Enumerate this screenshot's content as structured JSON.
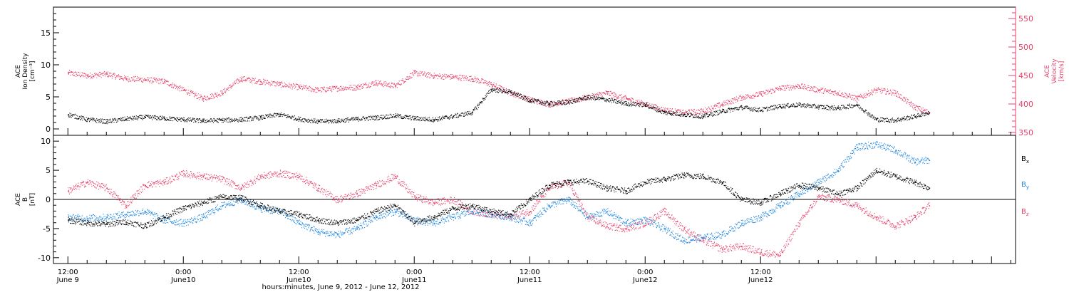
{
  "chart_data": [
    {
      "type": "scatter",
      "panel": "top",
      "ylabel": "ACE Ion Density [cm⁻³]",
      "ylabel_lines": [
        "ACE",
        "Ion Density",
        "[cm⁻³]"
      ],
      "ylim": [
        -1,
        19
      ],
      "yticks": [
        0,
        5,
        10,
        15
      ],
      "y2label": "ACE Velocity [km/s]",
      "y2label_lines": [
        "ACE",
        "Velocity",
        "[km/s]"
      ],
      "y2lim": [
        345,
        570
      ],
      "y2ticks": [
        350,
        400,
        450,
        500,
        550
      ],
      "y2_color": "#e8406a",
      "series": [
        {
          "name": "Ion Density",
          "axis": "left",
          "color": "#000000",
          "x_hours": [
            0,
            2,
            4,
            6,
            8,
            10,
            12,
            14,
            16,
            18,
            20,
            22,
            24,
            26,
            28,
            30,
            32,
            34,
            36,
            38,
            40,
            42,
            44,
            46,
            48,
            50,
            52,
            54,
            56,
            58,
            60,
            62,
            64,
            66,
            68,
            70,
            72,
            74,
            76,
            78,
            80,
            82,
            84,
            86,
            88,
            89.5
          ],
          "values": [
            2.3,
            1.5,
            1.2,
            1.6,
            1.9,
            1.7,
            1.5,
            1.3,
            1.4,
            1.5,
            1.8,
            2.3,
            1.6,
            1.2,
            1.3,
            1.6,
            1.8,
            2.1,
            1.7,
            1.5,
            2.0,
            2.6,
            6.2,
            5.8,
            4.5,
            4.0,
            4.2,
            5.0,
            4.6,
            4.0,
            3.8,
            2.6,
            2.3,
            2.0,
            2.8,
            3.4,
            3.0,
            3.6,
            3.8,
            3.5,
            3.3,
            3.8,
            1.5,
            1.4,
            2.0,
            2.6
          ]
        },
        {
          "name": "Velocity",
          "axis": "right",
          "color": "#e8406a",
          "x_hours": [
            0,
            2,
            4,
            6,
            8,
            10,
            12,
            14,
            16,
            18,
            20,
            22,
            24,
            26,
            28,
            30,
            32,
            34,
            36,
            38,
            40,
            42,
            44,
            46,
            48,
            50,
            52,
            54,
            56,
            58,
            60,
            62,
            64,
            66,
            68,
            70,
            72,
            74,
            76,
            78,
            80,
            82,
            84,
            86,
            88,
            89.5
          ],
          "values": [
            455,
            450,
            453,
            445,
            443,
            440,
            425,
            410,
            420,
            445,
            440,
            435,
            430,
            425,
            428,
            430,
            438,
            432,
            455,
            450,
            448,
            445,
            435,
            420,
            408,
            400,
            405,
            412,
            420,
            410,
            400,
            390,
            385,
            388,
            400,
            412,
            418,
            428,
            432,
            425,
            420,
            410,
            425,
            420,
            395,
            385
          ]
        }
      ]
    },
    {
      "type": "scatter",
      "panel": "bottom",
      "ylabel": "ACE B [nT]",
      "ylabel_lines": [
        "ACE",
        "B",
        "[nT]"
      ],
      "ylim": [
        -11,
        11
      ],
      "yticks": [
        -10,
        -5,
        0,
        5,
        10
      ],
      "zero_line": true,
      "series": [
        {
          "name": "Bx",
          "legend_main": "B",
          "legend_sub": "x",
          "color": "#000000",
          "x_hours": [
            0,
            2,
            4,
            6,
            8,
            10,
            12,
            14,
            16,
            18,
            20,
            22,
            24,
            26,
            28,
            30,
            32,
            34,
            36,
            38,
            40,
            42,
            44,
            46,
            48,
            50,
            52,
            54,
            56,
            58,
            60,
            62,
            64,
            66,
            68,
            70,
            72,
            74,
            76,
            78,
            80,
            82,
            84,
            86,
            88,
            89.5
          ],
          "values": [
            -3.5,
            -4.0,
            -4.2,
            -3.8,
            -4.5,
            -3.0,
            -1.5,
            -0.5,
            0.5,
            0.3,
            -1.0,
            -2.0,
            -2.5,
            -3.5,
            -4.0,
            -3.5,
            -2.0,
            -1.0,
            -4.0,
            -3.0,
            -1.5,
            -1.0,
            -2.0,
            -2.5,
            0.0,
            2.5,
            3.0,
            3.2,
            2.0,
            1.5,
            3.0,
            3.5,
            4.2,
            4.0,
            3.0,
            0.0,
            -0.5,
            1.0,
            2.5,
            2.0,
            1.0,
            2.0,
            5.0,
            4.0,
            3.0,
            2.0
          ]
        },
        {
          "name": "By",
          "legend_main": "B",
          "legend_sub": "y",
          "color": "#1e86e0",
          "x_hours": [
            0,
            2,
            4,
            6,
            8,
            10,
            12,
            14,
            16,
            18,
            20,
            22,
            24,
            26,
            28,
            30,
            32,
            34,
            36,
            38,
            40,
            42,
            44,
            46,
            48,
            50,
            52,
            54,
            56,
            58,
            60,
            62,
            64,
            66,
            68,
            70,
            72,
            74,
            76,
            78,
            80,
            82,
            84,
            86,
            88,
            89.5
          ],
          "values": [
            -3.0,
            -3.2,
            -3.0,
            -2.5,
            -2.0,
            -3.5,
            -4.0,
            -3.0,
            -1.0,
            0.0,
            -1.5,
            -2.0,
            -4.0,
            -5.5,
            -6.0,
            -5.0,
            -3.0,
            -2.0,
            -3.5,
            -4.0,
            -3.0,
            -2.0,
            -2.5,
            -3.0,
            -4.0,
            -1.0,
            0.0,
            -3.0,
            -2.0,
            -4.0,
            -3.5,
            -5.0,
            -7.0,
            -6.5,
            -6.0,
            -4.0,
            -3.0,
            -1.0,
            1.0,
            3.0,
            5.0,
            9.0,
            9.5,
            8.5,
            6.5,
            6.8
          ]
        },
        {
          "name": "Bz",
          "legend_main": "B",
          "legend_sub": "z",
          "color": "#e8406a",
          "x_hours": [
            0,
            2,
            4,
            6,
            8,
            10,
            12,
            14,
            16,
            18,
            20,
            22,
            24,
            26,
            28,
            30,
            32,
            34,
            36,
            38,
            40,
            42,
            44,
            46,
            48,
            50,
            52,
            54,
            56,
            58,
            60,
            62,
            64,
            66,
            68,
            70,
            72,
            74,
            76,
            78,
            80,
            82,
            84,
            86,
            88,
            89.5
          ],
          "values": [
            1.5,
            3.0,
            2.0,
            -1.0,
            2.5,
            3.0,
            4.5,
            4.0,
            3.5,
            2.0,
            4.0,
            4.5,
            4.0,
            2.0,
            0.0,
            1.0,
            2.5,
            4.0,
            0.5,
            -0.5,
            0.0,
            -2.0,
            -2.5,
            -3.0,
            -2.0,
            2.0,
            3.0,
            -3.0,
            -4.5,
            -5.0,
            -4.0,
            -2.0,
            -5.0,
            -7.0,
            -8.5,
            -8.0,
            -9.0,
            -9.5,
            -4.0,
            0.5,
            0.0,
            -1.0,
            -3.0,
            -4.5,
            -3.0,
            -1.0
          ]
        }
      ]
    }
  ],
  "x_axis": {
    "range_hours": [
      -1.5,
      98.5
    ],
    "major_hours": [
      0,
      12,
      24,
      36,
      48,
      60,
      72,
      84,
      96
    ],
    "minor_step_hours": 2,
    "tick_labels": [
      {
        "time": "12:00",
        "date": "June 9",
        "hour": 0
      },
      {
        "time": "0:00",
        "date": "June10",
        "hour": 12
      },
      {
        "time": "12:00",
        "date": "June10",
        "hour": 24
      },
      {
        "time": "0:00",
        "date": "June11",
        "hour": 36
      },
      {
        "time": "12:00",
        "date": "June11",
        "hour": 48
      },
      {
        "time": "0:00",
        "date": "June12",
        "hour": 60
      },
      {
        "time": "12:00",
        "date": "June12",
        "hour": 72
      }
    ],
    "title": "hours:minutes, June  9, 2012 - June 12, 2012"
  }
}
